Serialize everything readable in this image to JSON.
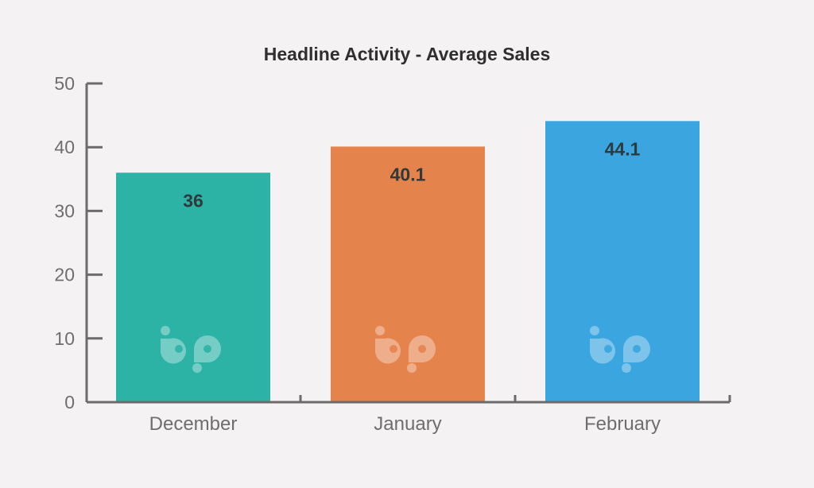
{
  "chart_data": {
    "type": "bar",
    "title": "Headline Activity - Average Sales",
    "xlabel": "",
    "ylabel": "",
    "categories": [
      "December",
      "January",
      "February"
    ],
    "values": [
      36,
      40.1,
      44.1
    ],
    "value_labels": [
      "36",
      "40.1",
      "44.1"
    ],
    "ylim": [
      0,
      50
    ],
    "yticks": [
      "0",
      "10",
      "20",
      "30",
      "40",
      "50"
    ],
    "grid": false,
    "legend": "none",
    "bar_colors": [
      "#2db3a6",
      "#e5834d",
      "#3aa5df"
    ],
    "watermark_icon": "bp-logo-icon"
  },
  "colors": {
    "background": "#f5f2f3",
    "axis": "#6b6b6b",
    "title": "#2f2f2f",
    "tick_label": "#6e6e6e",
    "value_label": "#2f3a3a"
  }
}
